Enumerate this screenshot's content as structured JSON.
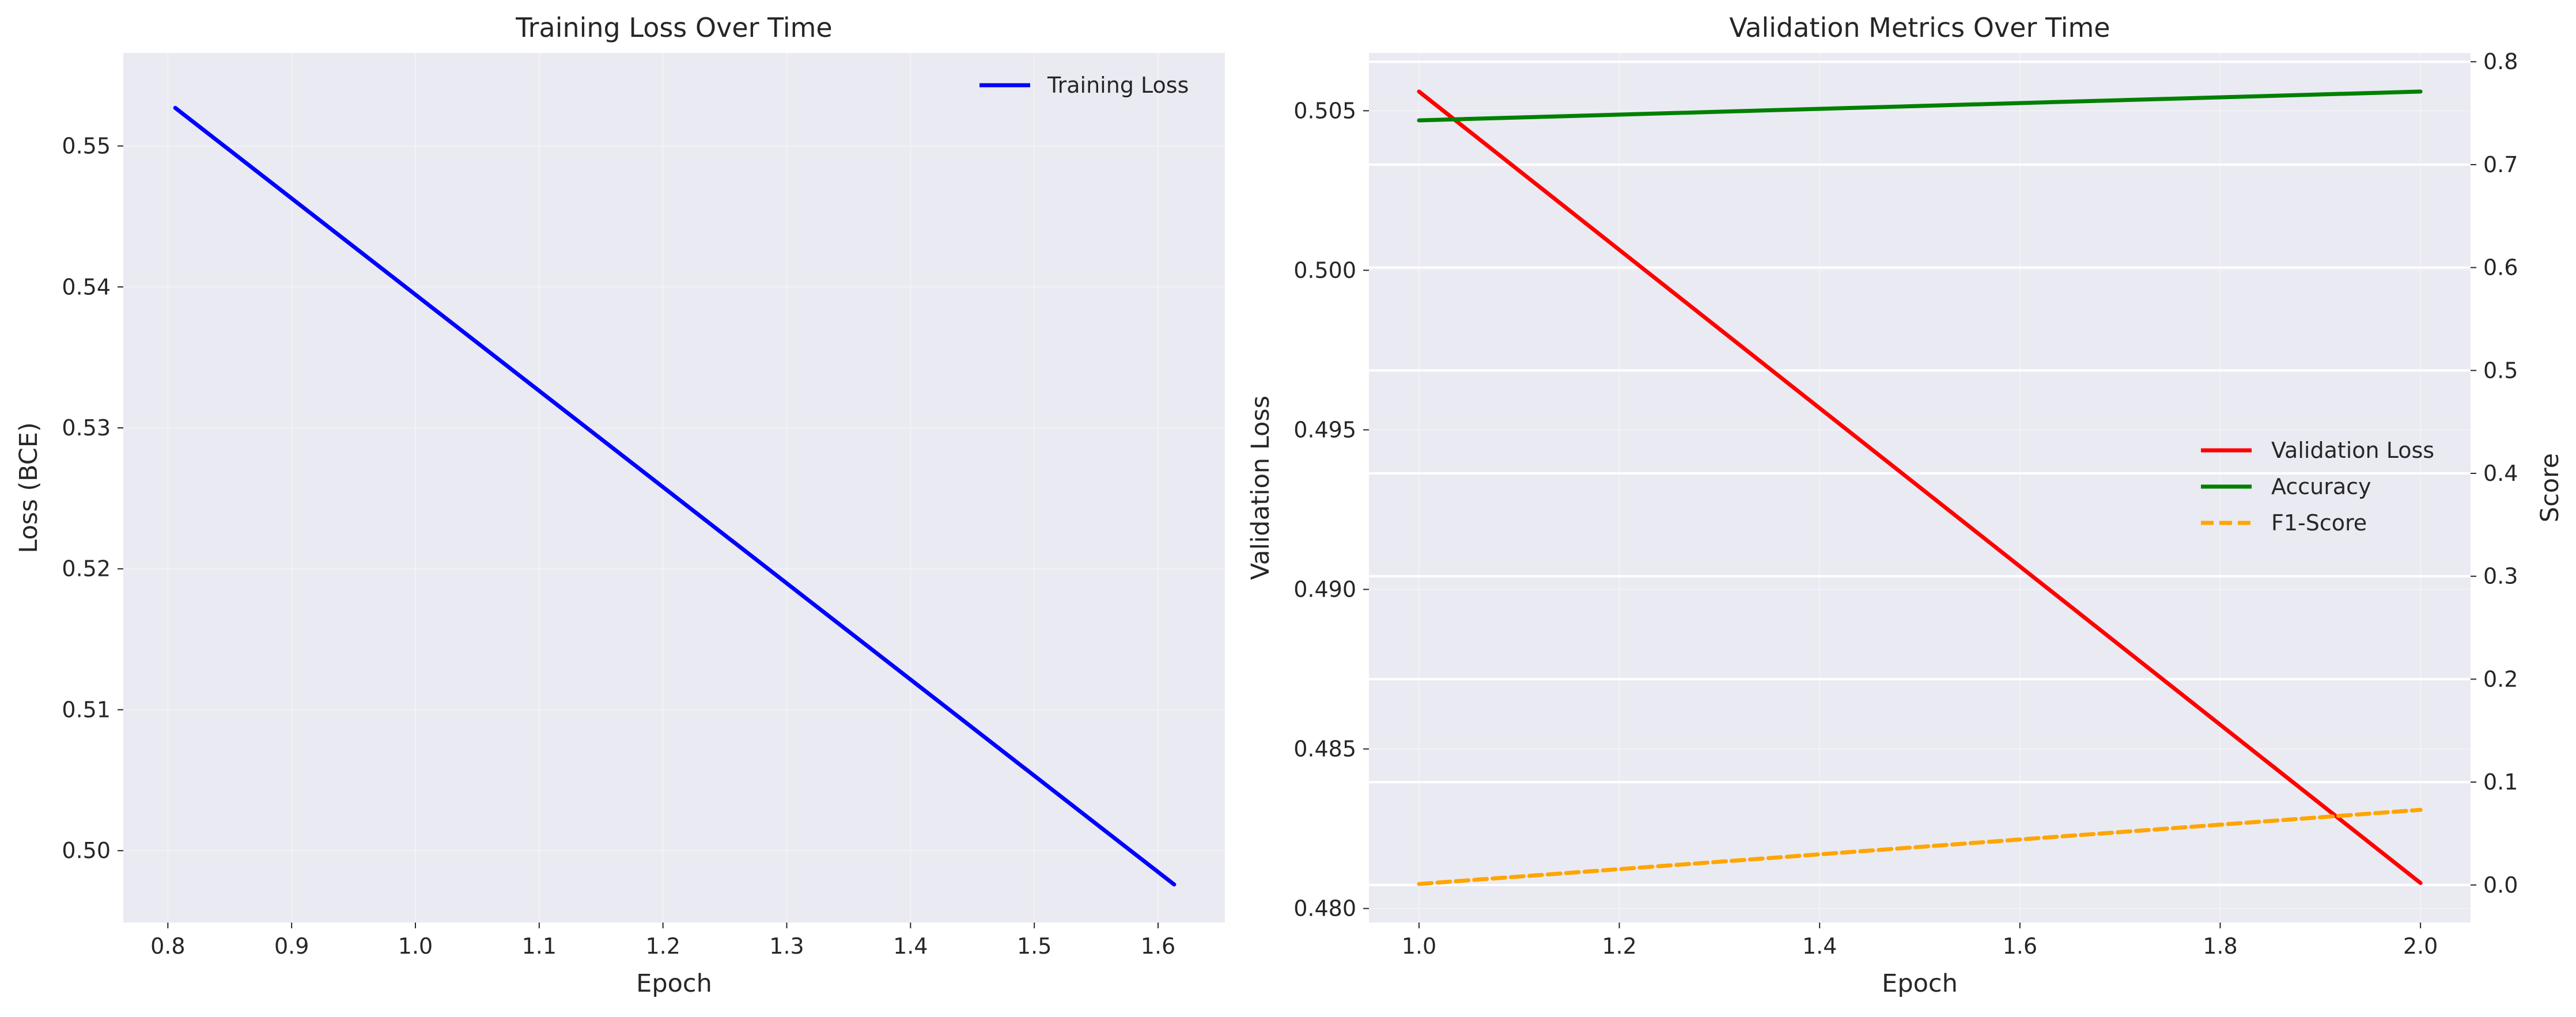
{
  "chart_data": [
    {
      "type": "line",
      "title": "Training Loss Over Time",
      "xlabel": "Epoch",
      "ylabel": "Loss (BCE)",
      "xlim": [
        0.764,
        1.654
      ],
      "ylim": [
        0.4949,
        0.5566
      ],
      "xticks": [
        "0.8",
        "0.9",
        "1.0",
        "1.1",
        "1.2",
        "1.3",
        "1.4",
        "1.5",
        "1.6"
      ],
      "yticks": [
        "0.50",
        "0.51",
        "0.52",
        "0.53",
        "0.54",
        "0.55"
      ],
      "grid": true,
      "legend_position": "top-right",
      "series": [
        {
          "name": "Training Loss",
          "color": "#0000ff",
          "style": "solid",
          "x": [
            0.806,
            1.613
          ],
          "y": [
            0.5527,
            0.4976
          ]
        }
      ]
    },
    {
      "type": "line",
      "title": "Validation Metrics Over Time",
      "xlabel": "Epoch",
      "ylabel": "Validation Loss",
      "ylabel_color": "#ff0000",
      "ylabel_right": "Score",
      "ylabel_right_color": "#008000",
      "xlim": [
        0.95,
        2.05
      ],
      "ylim": [
        0.47956,
        0.50681
      ],
      "ylim_right": [
        -0.0365,
        0.8085
      ],
      "xticks": [
        "1.0",
        "1.2",
        "1.4",
        "1.6",
        "1.8",
        "2.0"
      ],
      "yticks": [
        "0.480",
        "0.485",
        "0.490",
        "0.495",
        "0.500",
        "0.505"
      ],
      "yticks_right": [
        "0.0",
        "0.1",
        "0.2",
        "0.3",
        "0.4",
        "0.5",
        "0.6",
        "0.7",
        "0.8"
      ],
      "grid": true,
      "legend_position": "center-right",
      "series": [
        {
          "name": "Validation Loss",
          "axis": "left",
          "color": "#ff0000",
          "style": "solid",
          "x": [
            1.0,
            2.0
          ],
          "y": [
            0.5056,
            0.4808
          ]
        },
        {
          "name": "Accuracy",
          "axis": "right",
          "color": "#008000",
          "style": "solid",
          "x": [
            1.0,
            2.0
          ],
          "y": [
            0.743,
            0.771
          ]
        },
        {
          "name": "F1-Score",
          "axis": "right",
          "color": "#ffa500",
          "style": "dashed",
          "x": [
            1.0,
            2.0
          ],
          "y": [
            0.001,
            0.073
          ]
        }
      ]
    }
  ]
}
